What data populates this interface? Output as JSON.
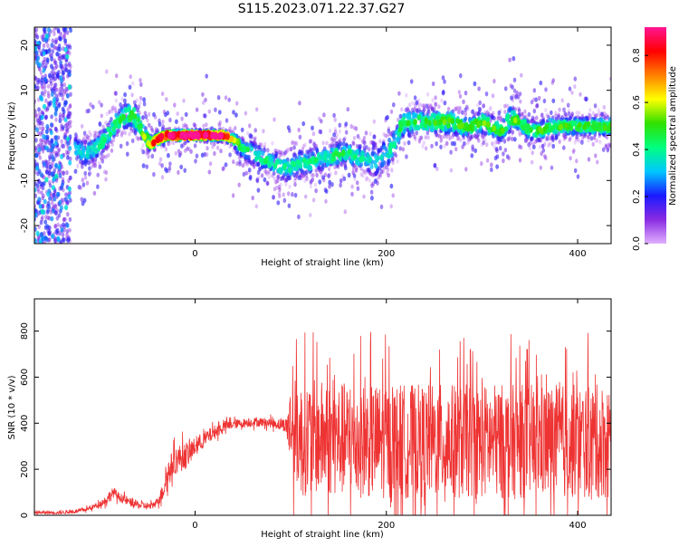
{
  "title": "S115.2023.071.22.37.G27",
  "colors": {
    "snr_line": "#ee3333",
    "frame": "#000000",
    "colorbar_stops": [
      "#e0b0ff",
      "#8a2be2",
      "#1a1aff",
      "#00c8ff",
      "#00ff80",
      "#30e000",
      "#ffff00",
      "#ff8000",
      "#ff0000",
      "#ff1493"
    ]
  },
  "chart_data": [
    {
      "type": "heatmap",
      "xlabel": "Height of straight line (km)",
      "ylabel": "Frequency (Hz)",
      "xlim": [
        -168,
        435
      ],
      "ylim": [
        -24,
        24
      ],
      "xticks": [
        0,
        200,
        400
      ],
      "yticks": [
        -20,
        -10,
        0,
        10,
        20
      ],
      "grid": false,
      "ridge": {
        "x": [
          -125,
          -115,
          -105,
          -95,
          -85,
          -75,
          -65,
          -60,
          -55,
          -50,
          -45,
          -40,
          -30,
          -20,
          -10,
          0,
          10,
          20,
          30,
          40,
          45,
          50,
          60,
          70,
          80,
          90,
          100,
          110,
          120,
          130,
          140,
          150,
          160,
          170,
          180,
          190,
          195,
          200,
          205,
          210,
          215,
          220,
          230,
          240,
          250,
          260,
          270,
          280,
          290,
          300,
          310,
          320,
          330,
          340,
          350,
          360,
          370,
          380,
          390,
          400,
          410,
          420,
          430
        ],
        "y": [
          -3,
          -4,
          -3,
          -1,
          2,
          4,
          5,
          3,
          1,
          -1,
          -2,
          -1,
          0,
          0,
          0,
          0,
          0,
          0,
          0,
          -1,
          -2,
          -3,
          -4,
          -5,
          -6,
          -7,
          -7,
          -6,
          -6,
          -5,
          -5,
          -4,
          -4,
          -5,
          -5,
          -6,
          -5,
          -4,
          -3,
          -1,
          2,
          3,
          3,
          3,
          3,
          3,
          3,
          2,
          2,
          3,
          2,
          1,
          4,
          3,
          1,
          1,
          2,
          2,
          2,
          2,
          2,
          2,
          2
        ],
        "spread": [
          4,
          4,
          4,
          4,
          4,
          4,
          5,
          4,
          3,
          3,
          2,
          2,
          1.5,
          1.5,
          1.5,
          1.5,
          1.5,
          1.5,
          1.5,
          2,
          3,
          3,
          3.5,
          3.5,
          3.5,
          4,
          4,
          4,
          4,
          4,
          4,
          4,
          4,
          4,
          4,
          5,
          5,
          5,
          5,
          4,
          4,
          4,
          4,
          4,
          4,
          4,
          4,
          3.5,
          3.5,
          3.5,
          3.5,
          3.5,
          3.5,
          3,
          3,
          3,
          3,
          3,
          3,
          3,
          3,
          3,
          3
        ],
        "peak_amplitude": [
          0.35,
          0.38,
          0.4,
          0.42,
          0.45,
          0.45,
          0.5,
          0.45,
          0.5,
          0.6,
          0.75,
          0.85,
          0.9,
          0.92,
          0.92,
          0.92,
          0.92,
          0.9,
          0.85,
          0.6,
          0.5,
          0.45,
          0.45,
          0.42,
          0.42,
          0.4,
          0.4,
          0.4,
          0.42,
          0.4,
          0.4,
          0.45,
          0.42,
          0.4,
          0.4,
          0.38,
          0.35,
          0.35,
          0.38,
          0.42,
          0.45,
          0.45,
          0.48,
          0.48,
          0.5,
          0.5,
          0.5,
          0.5,
          0.5,
          0.55,
          0.5,
          0.5,
          0.55,
          0.5,
          0.5,
          0.5,
          0.5,
          0.5,
          0.5,
          0.5,
          0.5,
          0.5,
          0.5
        ]
      },
      "noise_band_x": [
        -168,
        -130
      ],
      "colorbar": {
        "label": "Normalized spectral amplitude",
        "range": [
          0,
          0.92
        ],
        "ticks": [
          "0.0",
          "0.2",
          "0.4",
          "0.6",
          "0.8"
        ]
      }
    },
    {
      "type": "line",
      "xlabel": "Height of straight line (km)",
      "ylabel": "SNR (10 * v/v)",
      "xlim": [
        -168,
        435
      ],
      "ylim": [
        0,
        940
      ],
      "xticks": [
        0,
        200,
        400
      ],
      "yticks": [
        0,
        200,
        400,
        600,
        800
      ],
      "grid": false,
      "series": [
        {
          "trend_x": [
            -168,
            -140,
            -130,
            -120,
            -110,
            -100,
            -95,
            -90,
            -85,
            -80,
            -70,
            -60,
            -50,
            -45,
            -40,
            -35,
            -30,
            -25,
            -20,
            -15,
            -10,
            -5,
            0,
            10,
            20,
            30,
            40,
            50,
            60,
            70,
            80,
            90,
            100,
            105,
            110,
            120,
            150,
            200,
            250,
            300,
            350,
            400,
            435
          ],
          "trend_y": [
            12,
            12,
            15,
            20,
            30,
            50,
            60,
            80,
            100,
            80,
            60,
            45,
            40,
            40,
            60,
            90,
            160,
            210,
            240,
            250,
            260,
            270,
            300,
            330,
            360,
            385,
            395,
            400,
            405,
            405,
            400,
            395,
            385,
            370,
            330,
            340,
            330,
            320,
            320,
            320,
            320,
            320,
            320
          ],
          "noise_x": [
            -168,
            -120,
            -100,
            -90,
            -80,
            -40,
            -30,
            -10,
            0,
            40,
            80,
            95,
            100,
            110,
            200,
            300,
            435
          ],
          "noise_amplitude": [
            6,
            8,
            12,
            25,
            20,
            15,
            60,
            60,
            40,
            20,
            20,
            30,
            200,
            250,
            250,
            250,
            250
          ]
        }
      ]
    }
  ]
}
